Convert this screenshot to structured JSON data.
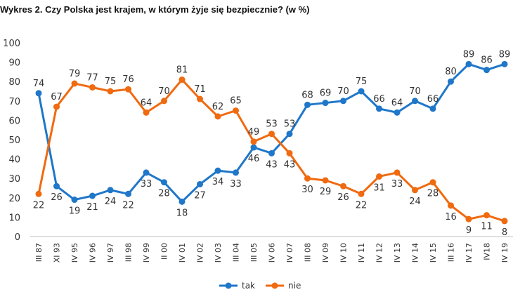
{
  "title": "Wykres 2. Czy Polska jest krajem, w którym żyje się bezpiecznie? (w %)",
  "chart_data": {
    "type": "line",
    "title": "Wykres 2. Czy Polska jest krajem, w którym żyje się bezpiecznie? (w %)",
    "xlabel": "",
    "ylabel": "",
    "ylim": [
      0,
      100
    ],
    "yticks": [
      0,
      10,
      20,
      30,
      40,
      50,
      60,
      70,
      80,
      90,
      100
    ],
    "grid": false,
    "legend_position": "bottom",
    "categories": [
      "III 87",
      "XI 93",
      "IV 95",
      "IV 96",
      "IV 97",
      "III 98",
      "IV 99",
      "II 00",
      "IV 01",
      "IV 02",
      "IV 03",
      "III 04",
      "III 05",
      "IV 06",
      "IV 07",
      "III 08",
      "IV 09",
      "IV 10",
      "IV 11",
      "IV 12",
      "IV 13",
      "IV 14",
      "IV 15",
      "III 16",
      "IV 17",
      "IV18",
      "IV 19"
    ],
    "series": [
      {
        "name": "tak",
        "color": "#1f77c9",
        "values": [
          74,
          26,
          19,
          21,
          24,
          22,
          33,
          28,
          18,
          27,
          34,
          33,
          46,
          43,
          53,
          68,
          69,
          70,
          75,
          66,
          64,
          70,
          66,
          80,
          89,
          86,
          89
        ]
      },
      {
        "name": "nie",
        "color": "#f06a10",
        "values": [
          22,
          67,
          79,
          77,
          75,
          76,
          64,
          70,
          81,
          71,
          62,
          65,
          49,
          53,
          43,
          30,
          29,
          26,
          22,
          31,
          33,
          24,
          28,
          16,
          9,
          11,
          8
        ]
      }
    ]
  }
}
